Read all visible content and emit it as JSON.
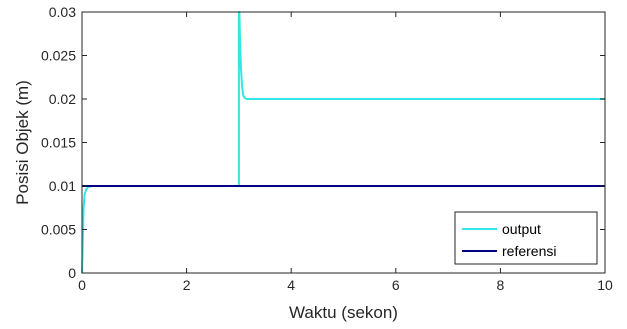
{
  "chart_data": {
    "type": "line",
    "xlabel": "Waktu (sekon)",
    "ylabel": "Posisi Objek (m)",
    "xlim": [
      0,
      10
    ],
    "ylim": [
      0,
      0.03
    ],
    "x_ticks": [
      0,
      2,
      4,
      6,
      8,
      10
    ],
    "x_tick_labels": [
      "0",
      "2",
      "4",
      "6",
      "8",
      "10"
    ],
    "y_ticks": [
      0,
      0.005,
      0.01,
      0.015,
      0.02,
      0.025,
      0.03
    ],
    "y_tick_labels": [
      "0",
      "0.005",
      "0.01",
      "0.015",
      "0.02",
      "0.025",
      "0.03"
    ],
    "grid": false,
    "legend_position": "bottom-right",
    "series": [
      {
        "name": "output",
        "color": "#33e6e6",
        "x": [
          0,
          0.01,
          0.02,
          0.03,
          0.05,
          0.08,
          0.12,
          0.2,
          0.3,
          1.0,
          2.0,
          2.99,
          3.0,
          3.0,
          3.01,
          3.02,
          3.04,
          3.06,
          3.08,
          3.1,
          3.14,
          3.2,
          3.3,
          4.0,
          6.0,
          8.0,
          10.0
        ],
        "y": [
          0,
          0.002,
          0.005,
          0.0075,
          0.009,
          0.0096,
          0.0099,
          0.01,
          0.01,
          0.01,
          0.01,
          0.01,
          0.01,
          0.03,
          0.03,
          0.027,
          0.0235,
          0.0215,
          0.0205,
          0.0202,
          0.02,
          0.02,
          0.02,
          0.02,
          0.02,
          0.02,
          0.02
        ]
      },
      {
        "name": "referensi",
        "color": "#000080",
        "x": [
          0,
          10
        ],
        "y": [
          0.01,
          0.01
        ]
      }
    ]
  }
}
